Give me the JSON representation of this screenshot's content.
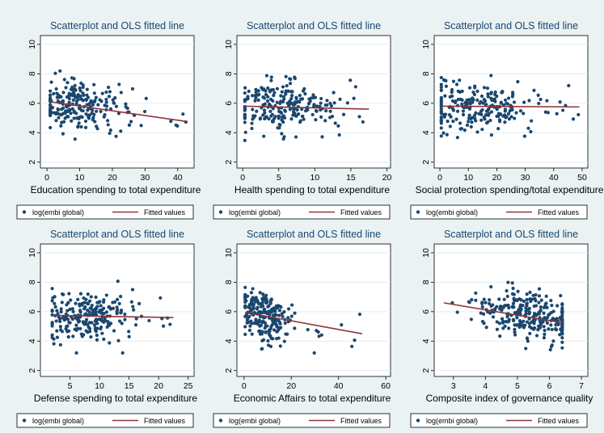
{
  "colors": {
    "background": "#eaf2f3",
    "plot_region": "#ffffff",
    "marker": "#1a476f",
    "fitted_line": "#90353b",
    "grid": "#e3ebee",
    "title": "#1a476f"
  },
  "legend": {
    "markers_label": "log(embi global)",
    "line_label": "Fitted values"
  },
  "chart_data": [
    {
      "type": "scatter",
      "title": "Scatterplot and OLS fitted line",
      "xlabel": "Education spending to total expenditure",
      "ylabel": "",
      "xlim": [
        -2,
        45
      ],
      "ylim": [
        1.6,
        10.6
      ],
      "xticks": [
        0,
        10,
        20,
        30,
        40
      ],
      "yticks": [
        2,
        4,
        6,
        8,
        10
      ],
      "x_range": [
        1,
        43
      ],
      "x_center": 10,
      "x_sd": 7,
      "x_skew": true,
      "y_center": 5.8,
      "y_sd": 0.85,
      "n_points": 230,
      "seed": 11,
      "fitted_line": {
        "x": [
          1,
          43
        ],
        "y": [
          6.1,
          4.75
        ]
      },
      "series": [
        {
          "name": "log(embi global)",
          "role": "markers"
        },
        {
          "name": "Fitted values",
          "role": "line"
        }
      ],
      "grid": true,
      "legend_position": "bottom"
    },
    {
      "type": "scatter",
      "title": "Scatterplot and OLS fitted line",
      "xlabel": "Health spending to total expenditure",
      "ylabel": "",
      "xlim": [
        -0.8,
        20.5
      ],
      "ylim": [
        1.6,
        10.6
      ],
      "xticks": [
        0,
        5,
        10,
        15,
        20
      ],
      "yticks": [
        2,
        4,
        6,
        8,
        10
      ],
      "x_range": [
        0.3,
        17.5
      ],
      "x_center": 5.5,
      "x_sd": 3.2,
      "x_skew": true,
      "y_center": 5.8,
      "y_sd": 0.8,
      "n_points": 230,
      "seed": 23,
      "fitted_line": {
        "x": [
          0.3,
          17.5
        ],
        "y": [
          5.8,
          5.6
        ]
      },
      "series": [
        {
          "name": "log(embi global)",
          "role": "markers"
        },
        {
          "name": "Fitted values",
          "role": "line"
        }
      ],
      "grid": true,
      "legend_position": "bottom"
    },
    {
      "type": "scatter",
      "title": "Scatterplot and OLS fitted line",
      "xlabel": "Social protection spending/total expenditure",
      "ylabel": "",
      "xlim": [
        -2,
        52
      ],
      "ylim": [
        1.6,
        10.6
      ],
      "xticks": [
        0,
        10,
        20,
        30,
        40,
        50
      ],
      "yticks": [
        2,
        4,
        6,
        8,
        10
      ],
      "x_range": [
        0.5,
        49
      ],
      "x_center": 12,
      "x_sd": 11,
      "x_skew": true,
      "y_center": 5.75,
      "y_sd": 0.85,
      "n_points": 230,
      "seed": 37,
      "fitted_line": {
        "x": [
          0.5,
          49
        ],
        "y": [
          5.8,
          5.75
        ]
      },
      "series": [
        {
          "name": "log(embi global)",
          "role": "markers"
        },
        {
          "name": "Fitted values",
          "role": "line"
        }
      ],
      "grid": true,
      "legend_position": "bottom"
    },
    {
      "type": "scatter",
      "title": "Scatterplot and OLS fitted line",
      "xlabel": "Defense spending to total expenditure",
      "ylabel": "",
      "xlim": [
        0,
        26
      ],
      "ylim": [
        1.6,
        10.6
      ],
      "xticks": [
        5,
        10,
        15,
        20,
        25
      ],
      "yticks": [
        2,
        4,
        6,
        8,
        10
      ],
      "x_range": [
        2,
        22.5
      ],
      "x_center": 7.5,
      "x_sd": 3.8,
      "x_skew": true,
      "y_center": 5.7,
      "y_sd": 0.85,
      "n_points": 230,
      "seed": 41,
      "fitted_line": {
        "x": [
          2,
          22.5
        ],
        "y": [
          5.75,
          5.6
        ]
      },
      "series": [
        {
          "name": "log(embi global)",
          "role": "markers"
        },
        {
          "name": "Fitted values",
          "role": "line"
        }
      ],
      "grid": true,
      "legend_position": "bottom"
    },
    {
      "type": "scatter",
      "title": "Scatterplot and OLS fitted line",
      "xlabel": "Economic Affairs to total expenditure",
      "ylabel": "",
      "xlim": [
        -3,
        62
      ],
      "ylim": [
        1.6,
        10.6
      ],
      "xticks": [
        0,
        20,
        40,
        60
      ],
      "yticks": [
        2,
        4,
        6,
        8,
        10
      ],
      "x_range": [
        0.5,
        50
      ],
      "x_center": 8,
      "x_sd": 5.5,
      "x_skew": true,
      "y_center": 5.85,
      "y_sd": 0.9,
      "n_points": 230,
      "seed": 53,
      "fitted_line": {
        "x": [
          0.5,
          50
        ],
        "y": [
          5.95,
          4.5
        ]
      },
      "series": [
        {
          "name": "log(embi global)",
          "role": "markers"
        },
        {
          "name": "Fitted values",
          "role": "line"
        }
      ],
      "grid": true,
      "legend_position": "bottom"
    },
    {
      "type": "scatter",
      "title": "Scatterplot and OLS fitted line",
      "xlabel": "Composite index of governance quality",
      "ylabel": "",
      "xlim": [
        2.4,
        7.2
      ],
      "ylim": [
        1.6,
        10.6
      ],
      "xticks": [
        3,
        4,
        5,
        6,
        7
      ],
      "yticks": [
        2,
        4,
        6,
        8,
        10
      ],
      "x_range": [
        2.7,
        6.4
      ],
      "x_center": 5.3,
      "x_sd": 0.8,
      "x_skew": false,
      "y_center": 5.85,
      "y_sd": 0.8,
      "n_points": 280,
      "seed": 67,
      "fitted_line": {
        "x": [
          2.7,
          6.4
        ],
        "y": [
          6.6,
          5.25
        ]
      },
      "series": [
        {
          "name": "log(embi global)",
          "role": "markers"
        },
        {
          "name": "Fitted values",
          "role": "line"
        }
      ],
      "grid": true,
      "legend_position": "bottom"
    }
  ]
}
